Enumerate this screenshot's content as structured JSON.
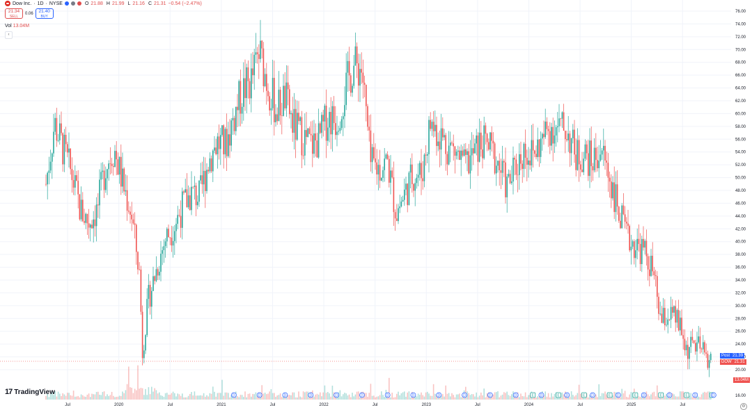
{
  "header": {
    "symbol_name": "Dow Inc.",
    "interval": "1D",
    "exchange": "NYSE",
    "title_sep": "·",
    "ohlc": [
      {
        "k": "O",
        "v": "21.88"
      },
      {
        "k": "H",
        "v": "21.99"
      },
      {
        "k": "L",
        "v": "21.16"
      },
      {
        "k": "C",
        "v": "21.31"
      }
    ],
    "change": "−0.54 (−2.47%)"
  },
  "trade": {
    "sell_price": "21.34",
    "sell_label": "SELL",
    "spread": "0.06",
    "buy_price": "21.40",
    "buy_label": "BUY"
  },
  "volume_legend": {
    "label": "Vol",
    "value": "13.04M"
  },
  "price_tags": {
    "post_label": "Post",
    "post_price": "21.39",
    "symbol": "DOW",
    "last_price": "21.31",
    "volume_tag": "13.04M"
  },
  "branding": {
    "name": "TradingView"
  },
  "colors": {
    "up": "#26a69a",
    "down": "#ef5350",
    "post": "#2962ff",
    "accent_red": "#e04c4c"
  },
  "chart_data": {
    "type": "candlestick",
    "interval": "1D",
    "y_axis_ticks": [
      "16.00",
      "20.00",
      "22.00",
      "24.00",
      "26.00",
      "28.00",
      "30.00",
      "32.00",
      "34.00",
      "36.00",
      "38.00",
      "40.00",
      "42.00",
      "44.00",
      "46.00",
      "48.00",
      "50.00",
      "52.00",
      "54.00",
      "56.00",
      "58.00",
      "60.00",
      "62.00",
      "64.00",
      "66.00",
      "68.00",
      "70.00",
      "72.00",
      "74.00",
      "76.00"
    ],
    "x_axis_ticks": [
      "Jul",
      "2020",
      "Jul",
      "2021",
      "Jul",
      "2022",
      "Jul",
      "2023",
      "Jul",
      "2024",
      "Jul",
      "2025",
      "Jul"
    ],
    "price_path": [
      [
        "2019-04",
        49.0
      ],
      [
        "2019-05",
        58.5
      ],
      [
        "2019-06",
        54.5
      ],
      [
        "2019-07",
        50.5
      ],
      [
        "2019-08",
        45.0
      ],
      [
        "2019-09",
        43.0
      ],
      [
        "2019-10",
        45.0
      ],
      [
        "2019-11",
        52.0
      ],
      [
        "2019-12",
        54.5
      ],
      [
        "2020-01",
        49.0
      ],
      [
        "2020-02",
        44.5
      ],
      [
        "2020-03",
        34.5
      ],
      [
        "2020-03-23",
        22.5
      ],
      [
        "2020-04",
        31.0
      ],
      [
        "2020-05",
        36.0
      ],
      [
        "2020-06",
        40.5
      ],
      [
        "2020-07",
        42.5
      ],
      [
        "2020-08",
        45.5
      ],
      [
        "2020-09",
        47.5
      ],
      [
        "2020-10",
        47.0
      ],
      [
        "2020-11",
        52.5
      ],
      [
        "2020-12",
        55.5
      ],
      [
        "2021-01",
        55.0
      ],
      [
        "2021-02",
        59.5
      ],
      [
        "2021-03",
        63.5
      ],
      [
        "2021-04",
        65.0
      ],
      [
        "2021-05",
        69.5
      ],
      [
        "2021-06",
        64.5
      ],
      [
        "2021-07",
        60.5
      ],
      [
        "2021-08",
        62.5
      ],
      [
        "2021-09",
        58.0
      ],
      [
        "2021-10",
        56.5
      ],
      [
        "2021-11",
        55.0
      ],
      [
        "2021-12",
        56.0
      ],
      [
        "2022-01",
        59.5
      ],
      [
        "2022-02",
        59.0
      ],
      [
        "2022-03",
        63.5
      ],
      [
        "2022-04",
        67.5
      ],
      [
        "2022-05",
        67.0
      ],
      [
        "2022-06",
        52.0
      ],
      [
        "2022-07",
        51.5
      ],
      [
        "2022-08",
        52.5
      ],
      [
        "2022-09",
        44.5
      ],
      [
        "2022-10",
        47.5
      ],
      [
        "2022-11",
        50.5
      ],
      [
        "2022-12",
        50.5
      ],
      [
        "2023-01",
        58.5
      ],
      [
        "2023-02",
        57.0
      ],
      [
        "2023-03",
        55.0
      ],
      [
        "2023-04",
        54.0
      ],
      [
        "2023-05",
        51.5
      ],
      [
        "2023-06",
        53.5
      ],
      [
        "2023-07",
        55.5
      ],
      [
        "2023-08",
        54.5
      ],
      [
        "2023-09",
        52.0
      ],
      [
        "2023-10",
        48.5
      ],
      [
        "2023-11",
        51.5
      ],
      [
        "2023-12",
        54.5
      ],
      [
        "2024-01",
        53.5
      ],
      [
        "2024-02",
        55.5
      ],
      [
        "2024-03",
        58.0
      ],
      [
        "2024-04",
        57.5
      ],
      [
        "2024-05",
        57.5
      ],
      [
        "2024-06",
        53.5
      ],
      [
        "2024-07",
        53.5
      ],
      [
        "2024-08",
        52.5
      ],
      [
        "2024-09",
        54.5
      ],
      [
        "2024-10",
        50.0
      ],
      [
        "2024-11",
        45.0
      ],
      [
        "2024-12",
        40.5
      ],
      [
        "2025-01",
        39.5
      ],
      [
        "2025-02",
        38.5
      ],
      [
        "2025-03",
        35.5
      ],
      [
        "2025-04",
        27.5
      ],
      [
        "2025-05",
        28.5
      ],
      [
        "2025-06",
        27.5
      ],
      [
        "2025-07",
        23.0
      ],
      [
        "2025-08",
        24.0
      ],
      [
        "2025-09",
        22.5
      ],
      [
        "2025-10",
        21.31
      ]
    ],
    "last_price": 21.31,
    "post_price": 21.39,
    "volume": {
      "last_value": "13.04M",
      "peak_month": "2020-03"
    },
    "event_markers": [
      {
        "date": "2021-02",
        "type": "D"
      },
      {
        "date": "2021-05",
        "type": "D"
      },
      {
        "date": "2021-08",
        "type": "D"
      },
      {
        "date": "2021-11",
        "type": "D"
      },
      {
        "date": "2022-02",
        "type": "D"
      },
      {
        "date": "2022-05",
        "type": "D"
      },
      {
        "date": "2022-08",
        "type": "D"
      },
      {
        "date": "2022-11",
        "type": "D"
      },
      {
        "date": "2023-02",
        "type": "D"
      },
      {
        "date": "2023-05",
        "type": "D"
      },
      {
        "date": "2023-08",
        "type": "D"
      },
      {
        "date": "2023-11",
        "type": "D"
      },
      {
        "date": "2024-01",
        "type": "E"
      },
      {
        "date": "2024-02",
        "type": "D"
      },
      {
        "date": "2024-04",
        "type": "E"
      },
      {
        "date": "2024-05",
        "type": "D"
      },
      {
        "date": "2024-07",
        "type": "E"
      },
      {
        "date": "2024-08",
        "type": "D"
      },
      {
        "date": "2024-10",
        "type": "E"
      },
      {
        "date": "2024-11",
        "type": "D"
      },
      {
        "date": "2025-01",
        "type": "E"
      },
      {
        "date": "2025-02",
        "type": "D"
      },
      {
        "date": "2025-04",
        "type": "E"
      },
      {
        "date": "2025-05",
        "type": "D"
      },
      {
        "date": "2025-07",
        "type": "E"
      },
      {
        "date": "2025-08",
        "type": "D"
      },
      {
        "date": "2025-10",
        "type": "E"
      },
      {
        "date": "2025-10-20",
        "type": "D"
      }
    ],
    "grid": true,
    "y_axis_side": "right"
  }
}
